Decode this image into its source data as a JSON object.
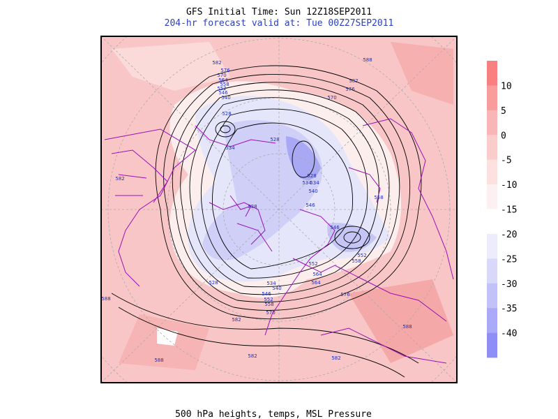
{
  "map": {
    "title": "GFS Initial Time: Sun 12Z18SEP2011",
    "subtitle": "204-hr forecast valid at: Tue 00Z27SEP2011",
    "footer": "500 hPa heights, temps,  MSL Pressure",
    "colorbar": {
      "lim": [
        15,
        -45
      ],
      "ticks": [
        10,
        5,
        0,
        -5,
        -10,
        -15,
        -20,
        -25,
        -30,
        -35,
        -40
      ],
      "colors": [
        "#f88080",
        "#f99c9c",
        "#fab6b6",
        "#fbcccc",
        "#fde0e0",
        "#fdf0f0",
        "#ffffff",
        "#ececfc",
        "#d8d8fa",
        "#c2c2f8",
        "#aaaaf8",
        "#8e8ef6"
      ]
    },
    "contour_labels": [
      582,
      576,
      570,
      564,
      558,
      552,
      546,
      540,
      528,
      534,
      588,
      582,
      576,
      570,
      528,
      534,
      528,
      534,
      540,
      546,
      528,
      558,
      546,
      552,
      558,
      528,
      534,
      540,
      546,
      552,
      558,
      564,
      570,
      576,
      582,
      588,
      582,
      588,
      582,
      588,
      552,
      582,
      564
    ]
  }
}
